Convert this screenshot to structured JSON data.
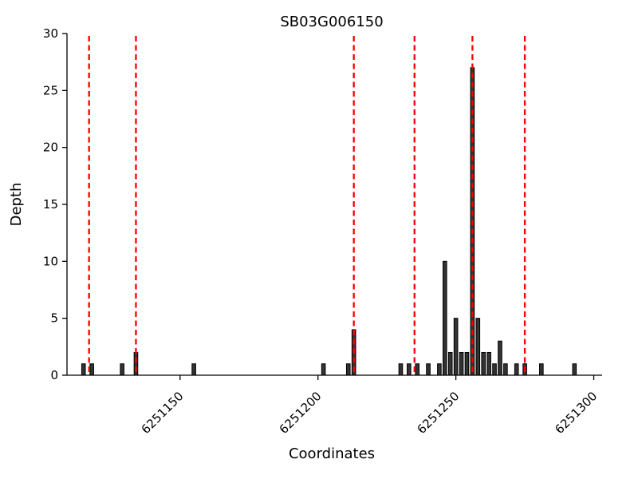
{
  "chart_data": {
    "type": "bar",
    "title": "SB03G006150",
    "xlabel": "Coordinates",
    "ylabel": "Depth",
    "xlim": [
      6251109,
      6251301
    ],
    "ylim": [
      0,
      30
    ],
    "xticks": [
      6251150,
      6251200,
      6251250,
      6251300
    ],
    "yticks": [
      0,
      5,
      10,
      15,
      20,
      25,
      30
    ],
    "legend": "none",
    "grid": "off",
    "bar_color": "#333333",
    "bar_edge_color": "#000000",
    "vline_color": "#ff0000",
    "vline_style": "dashed",
    "vlines": [
      6251117,
      6251134,
      6251213,
      6251235,
      6251256,
      6251275
    ],
    "bars": [
      {
        "x": 6251115,
        "depth": 1
      },
      {
        "x": 6251118,
        "depth": 1
      },
      {
        "x": 6251129,
        "depth": 1
      },
      {
        "x": 6251134,
        "depth": 2
      },
      {
        "x": 6251155,
        "depth": 1
      },
      {
        "x": 6251202,
        "depth": 1
      },
      {
        "x": 6251211,
        "depth": 1
      },
      {
        "x": 6251213,
        "depth": 4
      },
      {
        "x": 6251230,
        "depth": 1
      },
      {
        "x": 6251233,
        "depth": 1
      },
      {
        "x": 6251236,
        "depth": 1
      },
      {
        "x": 6251240,
        "depth": 1
      },
      {
        "x": 6251244,
        "depth": 1
      },
      {
        "x": 6251246,
        "depth": 10
      },
      {
        "x": 6251248,
        "depth": 2
      },
      {
        "x": 6251250,
        "depth": 5
      },
      {
        "x": 6251252,
        "depth": 2
      },
      {
        "x": 6251254,
        "depth": 2
      },
      {
        "x": 6251256,
        "depth": 27
      },
      {
        "x": 6251258,
        "depth": 5
      },
      {
        "x": 6251260,
        "depth": 2
      },
      {
        "x": 6251262,
        "depth": 2
      },
      {
        "x": 6251264,
        "depth": 1
      },
      {
        "x": 6251266,
        "depth": 3
      },
      {
        "x": 6251268,
        "depth": 1
      },
      {
        "x": 6251272,
        "depth": 1
      },
      {
        "x": 6251275,
        "depth": 1
      },
      {
        "x": 6251281,
        "depth": 1
      },
      {
        "x": 6251293,
        "depth": 1
      }
    ]
  }
}
